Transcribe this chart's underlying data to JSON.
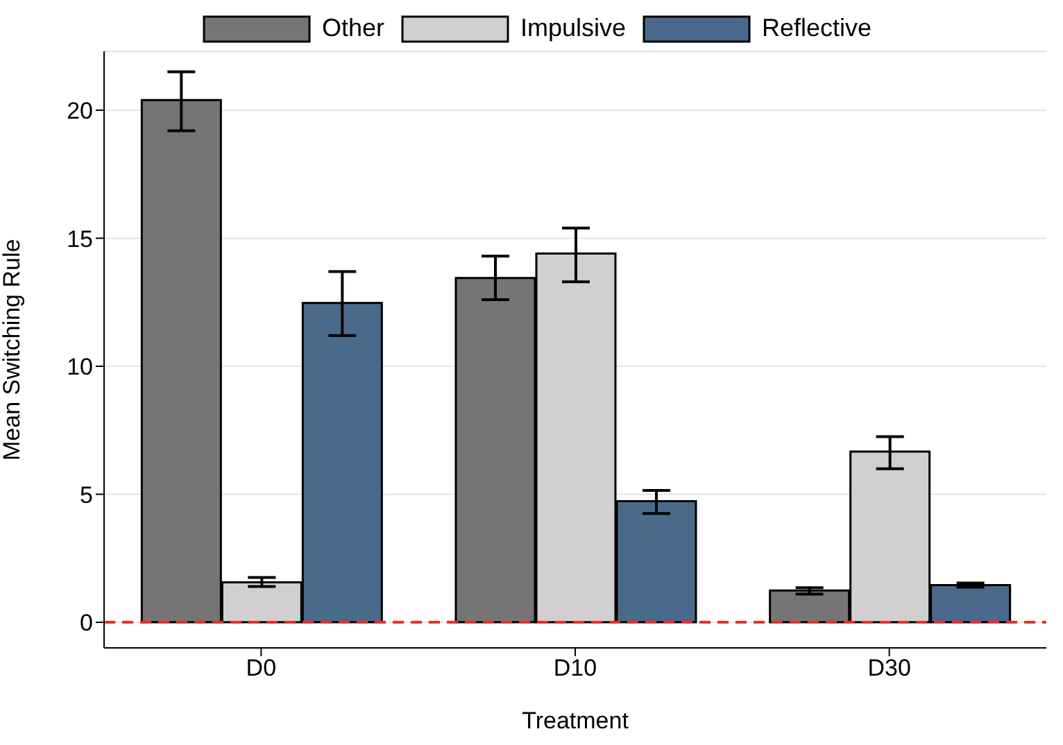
{
  "chart_data": {
    "type": "bar",
    "xlabel": "Treatment",
    "ylabel": "Mean Switching Rule",
    "categories": [
      "D0",
      "D10",
      "D30"
    ],
    "series": [
      {
        "name": "Other",
        "color": "#757575",
        "values": [
          20.4,
          13.45,
          1.24
        ],
        "errors": [
          [
            19.2,
            21.5
          ],
          [
            12.6,
            14.3
          ],
          [
            1.1,
            1.35
          ]
        ]
      },
      {
        "name": "Impulsive",
        "color": "#d0d0d0",
        "values": [
          1.56,
          14.4,
          6.67
        ],
        "errors": [
          [
            1.4,
            1.75
          ],
          [
            13.3,
            15.4
          ],
          [
            6.0,
            7.25
          ]
        ]
      },
      {
        "name": "Reflective",
        "color": "#4a6a8c",
        "values": [
          12.47,
          4.73,
          1.45
        ],
        "errors": [
          [
            11.2,
            13.7
          ],
          [
            4.25,
            5.15
          ],
          [
            1.37,
            1.53
          ]
        ]
      }
    ],
    "ylim": [
      -1,
      22.3
    ],
    "yticks": [
      0,
      5,
      10,
      15,
      20
    ],
    "grid": "y",
    "legend": "top",
    "ref_lines": [
      {
        "axis": "y",
        "value": 0,
        "color": "#e8302e",
        "line_style": "dashed"
      }
    ]
  }
}
